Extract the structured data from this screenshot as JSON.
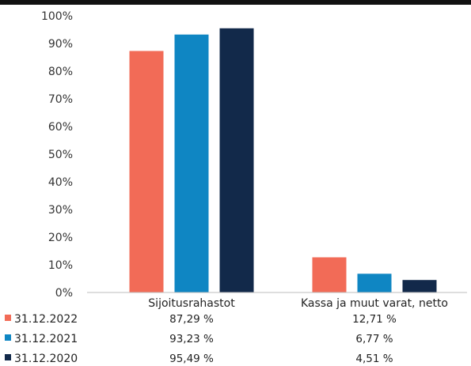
{
  "chart_data": {
    "type": "bar",
    "title": "",
    "xlabel": "",
    "ylabel": "",
    "ylim": [
      0,
      100
    ],
    "y_ticks": [
      "0%",
      "10%",
      "20%",
      "30%",
      "40%",
      "50%",
      "60%",
      "70%",
      "80%",
      "90%",
      "100%"
    ],
    "categories": [
      "Sijoitusrahastot",
      "Kassa ja muut varat, netto"
    ],
    "series": [
      {
        "name": "31.12.2022",
        "values": [
          87.29,
          12.71
        ],
        "labels": [
          "87,29 %",
          "12,71 %"
        ],
        "color": "#f26b57"
      },
      {
        "name": "31.12.2021",
        "values": [
          93.23,
          6.77
        ],
        "labels": [
          "93,23 %",
          "6,77 %"
        ],
        "color": "#0f86c3"
      },
      {
        "name": "31.12.2020",
        "values": [
          95.49,
          4.51
        ],
        "labels": [
          "95,49 %",
          "4,51 %"
        ],
        "color": "#12294a"
      }
    ],
    "grid": false,
    "legend_position": "bottom-left (data table)"
  },
  "colors": {
    "top_rule": "#111111",
    "axis_line": "#bdbdbd"
  }
}
